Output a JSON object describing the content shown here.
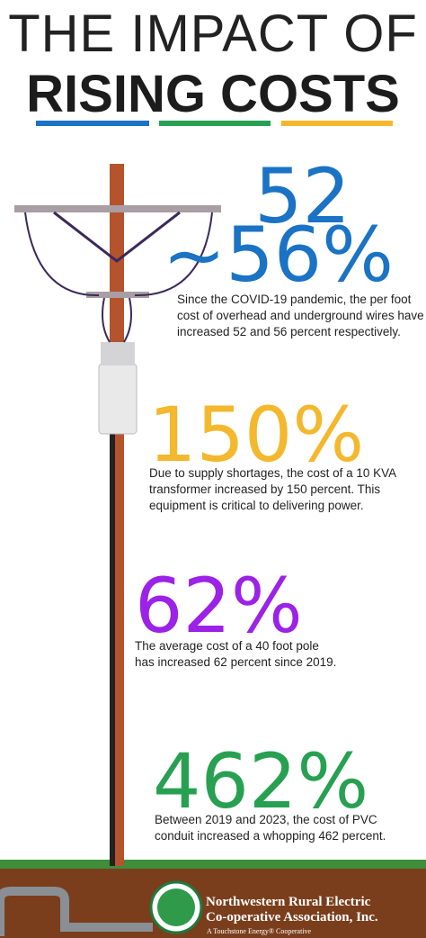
{
  "header": {
    "title_top": "THE IMPACT OF",
    "title_main": "RISING COSTS"
  },
  "stats": [
    {
      "figures": [
        "52",
        "~56%"
      ],
      "color": "#1a73c4",
      "lines": [
        "Since the COVID-19 pandemic, the per foot",
        "cost of overhead and underground wires have",
        "increased 52 and 56 percent respectively."
      ]
    },
    {
      "figures": [
        "150%"
      ],
      "color": "#f3b82d",
      "lines": [
        "Due to supply shortages, the cost of a 10 KVA",
        "transformer increased by 150 percent. This",
        "equipment is critical to delivering power."
      ]
    },
    {
      "figures": [
        "62%"
      ],
      "color": "#9b22e6",
      "lines": [
        "The average cost of a 40 foot pole",
        "has increased 62 percent since 2019."
      ]
    },
    {
      "figures": [
        "462%"
      ],
      "color": "#27a052",
      "lines": [
        "Between 2019 and 2023, the cost of PVC",
        "conduit increased a whopping 462 percent."
      ]
    }
  ],
  "footer": {
    "org_line1": "Northwestern Rural Electric",
    "org_line2": "Co-operative Association, Inc.",
    "tagline": "A Touchstone Energy® Cooperative"
  }
}
